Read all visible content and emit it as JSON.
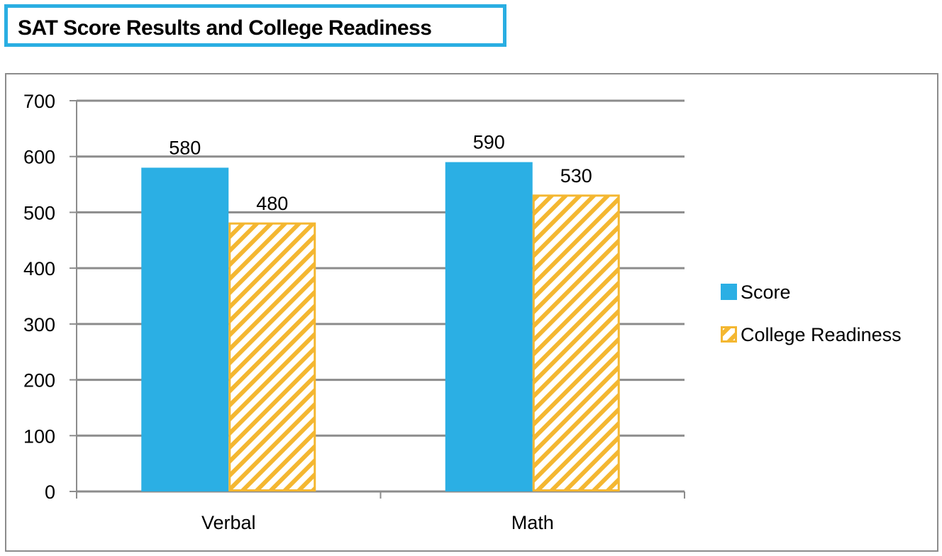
{
  "title": "SAT Score Results and College Readiness",
  "chart_data": {
    "type": "bar",
    "categories": [
      "Verbal",
      "Math"
    ],
    "series": [
      {
        "name": "Score",
        "values": [
          580,
          590
        ],
        "color": "#2bafe4",
        "pattern": "solid"
      },
      {
        "name": "College Readiness",
        "values": [
          480,
          530
        ],
        "color": "#f4b731",
        "pattern": "diagonal-stripes"
      }
    ],
    "y_ticks": [
      0,
      100,
      200,
      300,
      400,
      500,
      600,
      700
    ],
    "ylim": [
      0,
      700
    ],
    "grid": true,
    "legend_position": "right"
  }
}
